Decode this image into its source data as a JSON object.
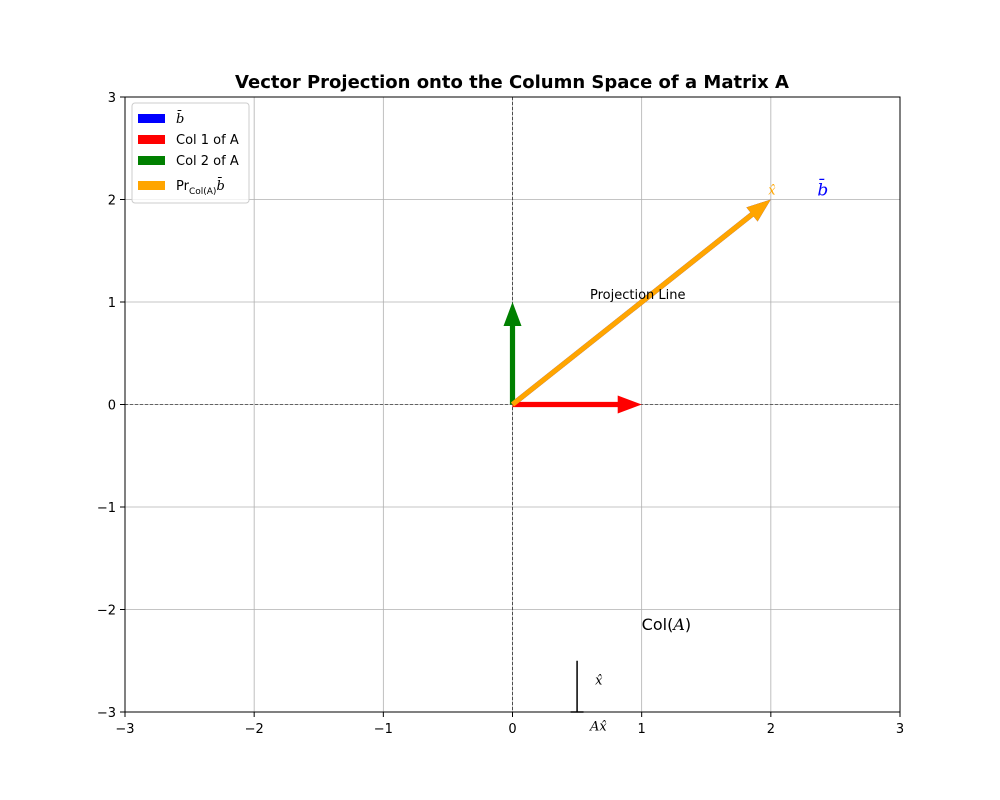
{
  "chart_data": {
    "type": "quiver",
    "title": "Vector Projection onto the Column Space of a Matrix A",
    "xlabel": "",
    "ylabel": "",
    "xlim": [
      -3,
      3
    ],
    "ylim": [
      -3,
      3
    ],
    "x_ticks": [
      -3,
      -2,
      -1,
      0,
      1,
      2,
      3
    ],
    "y_ticks": [
      -3,
      -2,
      -1,
      0,
      1,
      2,
      3
    ],
    "x_tick_labels": [
      "−3",
      "−2",
      "−1",
      "0",
      "1",
      "2",
      "3"
    ],
    "y_tick_labels": [
      "−3",
      "−2",
      "−1",
      "0",
      "1",
      "2",
      "3"
    ],
    "grid": true,
    "legend_position": "upper-left",
    "series": [
      {
        "name": "b̄",
        "color": "#0000ff",
        "x": 0,
        "y": 0,
        "dx": 2,
        "dy": 2
      },
      {
        "name": "Col 1 of A",
        "color": "#ff0000",
        "x": 0,
        "y": 0,
        "dx": 1,
        "dy": 0
      },
      {
        "name": "Col 2 of A",
        "color": "#008000",
        "x": 0,
        "y": 0,
        "dx": 0,
        "dy": 1
      },
      {
        "name": "Pr",
        "name_subscript": "Col(A)",
        "name_suffix": "b̄",
        "color": "#ffa500",
        "x": 0,
        "y": 0,
        "dx": 2,
        "dy": 2
      }
    ],
    "annotations": [
      {
        "text": "x̂",
        "x": 1.98,
        "y": 2.05,
        "color": "#ffa500",
        "style": "math"
      },
      {
        "text": "b̄",
        "x": 2.36,
        "y": 2.04,
        "color": "#0000ff",
        "style": "math"
      },
      {
        "text": "Projection Line",
        "x": 0.6,
        "y": 1.03,
        "color": "#000000",
        "style": "plain"
      },
      {
        "text": "Col(",
        "text_italic": "A",
        "text_end": ")",
        "x": 1.0,
        "y": -2.2,
        "color": "#000000",
        "style": "mixed"
      },
      {
        "text": "x̂",
        "x": 0.64,
        "y": -2.73,
        "color": "#000000",
        "style": "math"
      },
      {
        "text": "Ax̂",
        "x": 0.6,
        "y": -3.18,
        "color": "#000000",
        "style": "math"
      }
    ],
    "segments": [
      {
        "x1": 0.5,
        "y1": -3.0,
        "x2": 0.5,
        "y2": -2.5,
        "color": "#000000"
      },
      {
        "x1": 0.45,
        "y1": -3.0,
        "x2": 0.55,
        "y2": -3.0,
        "color": "#000000"
      }
    ],
    "reference_lines": {
      "x": 0,
      "y": 0
    }
  }
}
